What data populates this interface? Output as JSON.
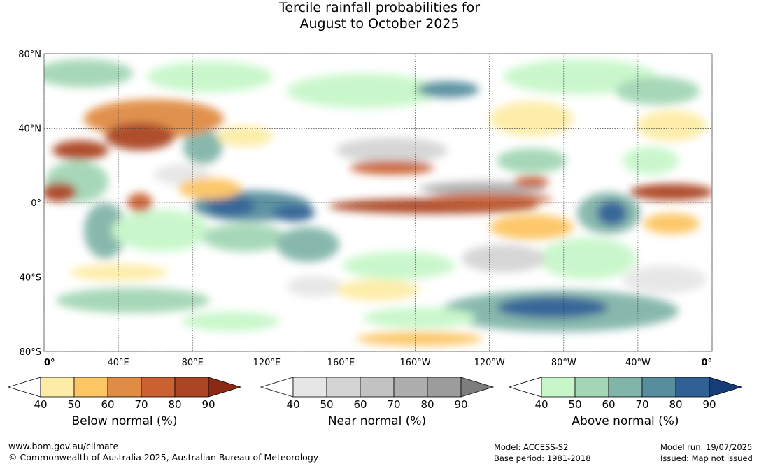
{
  "title": {
    "line1": "Tercile rainfall probabilities for",
    "line2": "August to October 2025"
  },
  "map": {
    "lat_labels": [
      "80°N",
      "40°N",
      "0°",
      "40°S",
      "80°S"
    ],
    "lon_labels": [
      "0°",
      "40°E",
      "80°E",
      "120°E",
      "160°E",
      "160°W",
      "120°W",
      "80°W",
      "40°W",
      "0°"
    ],
    "lat_values": [
      80,
      40,
      0,
      -40,
      -80
    ],
    "lon_values": [
      0,
      40,
      80,
      120,
      160,
      200,
      240,
      280,
      320,
      360
    ],
    "lon_range": [
      0,
      360
    ],
    "lat_range": [
      -80,
      80
    ],
    "grid": true
  },
  "legends": [
    {
      "id": "below",
      "title": "Below normal (%)",
      "ticks": [
        "40",
        "50",
        "60",
        "70",
        "80",
        "90"
      ],
      "colors": [
        "#ffffff",
        "#fdeca6",
        "#fdc564",
        "#e08c45",
        "#cb6130",
        "#ab4523",
        "#8b2a14"
      ]
    },
    {
      "id": "near",
      "title": "Near normal (%)",
      "ticks": [
        "40",
        "50",
        "60",
        "70",
        "80",
        "90"
      ],
      "colors": [
        "#ffffff",
        "#e6e6e6",
        "#d4d4d4",
        "#c2c2c2",
        "#aeaeae",
        "#9c9c9c",
        "#7d7d7d"
      ]
    },
    {
      "id": "above",
      "title": "Above normal (%)",
      "ticks": [
        "40",
        "50",
        "60",
        "70",
        "80",
        "90"
      ],
      "colors": [
        "#ffffff",
        "#c7f7c9",
        "#a2d6b4",
        "#82b5a9",
        "#568e9e",
        "#2f6194",
        "#163d78"
      ]
    }
  ],
  "footer": {
    "website": "www.bom.gov.au/climate",
    "copyright": "© Commonwealth of Australia 2025, Australian Bureau of Meteorology",
    "model": "Model: ACCESS-S2",
    "base_period": "Base period: 1981-2018",
    "model_run": "Model run: 19/07/2025",
    "issued": "Issued: Map not issued"
  }
}
